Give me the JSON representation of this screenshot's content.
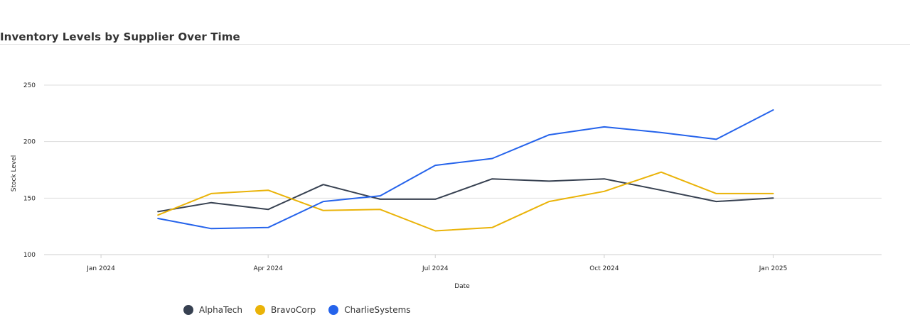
{
  "chart_data": {
    "type": "line",
    "title": "Inventory Levels by Supplier Over Time",
    "xlabel": "Date",
    "ylabel": "Stock Level",
    "x_ticks": [
      "Jan 2024",
      "Apr 2024",
      "Jul 2024",
      "Oct 2024",
      "Jan 2025"
    ],
    "xlim": [
      "2023-12-01",
      "2025-03-01"
    ],
    "y_ticks": [
      100,
      150,
      200,
      250
    ],
    "ylim": [
      100,
      260
    ],
    "grid": "horizontal",
    "legend_position": "bottom-left",
    "x": [
      "2024-02-01",
      "2024-03-01",
      "2024-04-01",
      "2024-05-01",
      "2024-06-01",
      "2024-07-01",
      "2024-08-01",
      "2024-09-01",
      "2024-10-01",
      "2024-11-01",
      "2024-12-01",
      "2025-01-01"
    ],
    "series": [
      {
        "name": "AlphaTech",
        "color": "#374151",
        "values": [
          138,
          146,
          140,
          162,
          149,
          149,
          167,
          165,
          167,
          157,
          147,
          150
        ]
      },
      {
        "name": "BravoCorp",
        "color": "#eab308",
        "values": [
          135,
          154,
          157,
          139,
          140,
          121,
          124,
          147,
          156,
          173,
          154,
          154
        ]
      },
      {
        "name": "CharlieSystems",
        "color": "#2563eb",
        "values": [
          132,
          123,
          124,
          147,
          152,
          179,
          185,
          206,
          213,
          208,
          202,
          228
        ]
      }
    ]
  }
}
